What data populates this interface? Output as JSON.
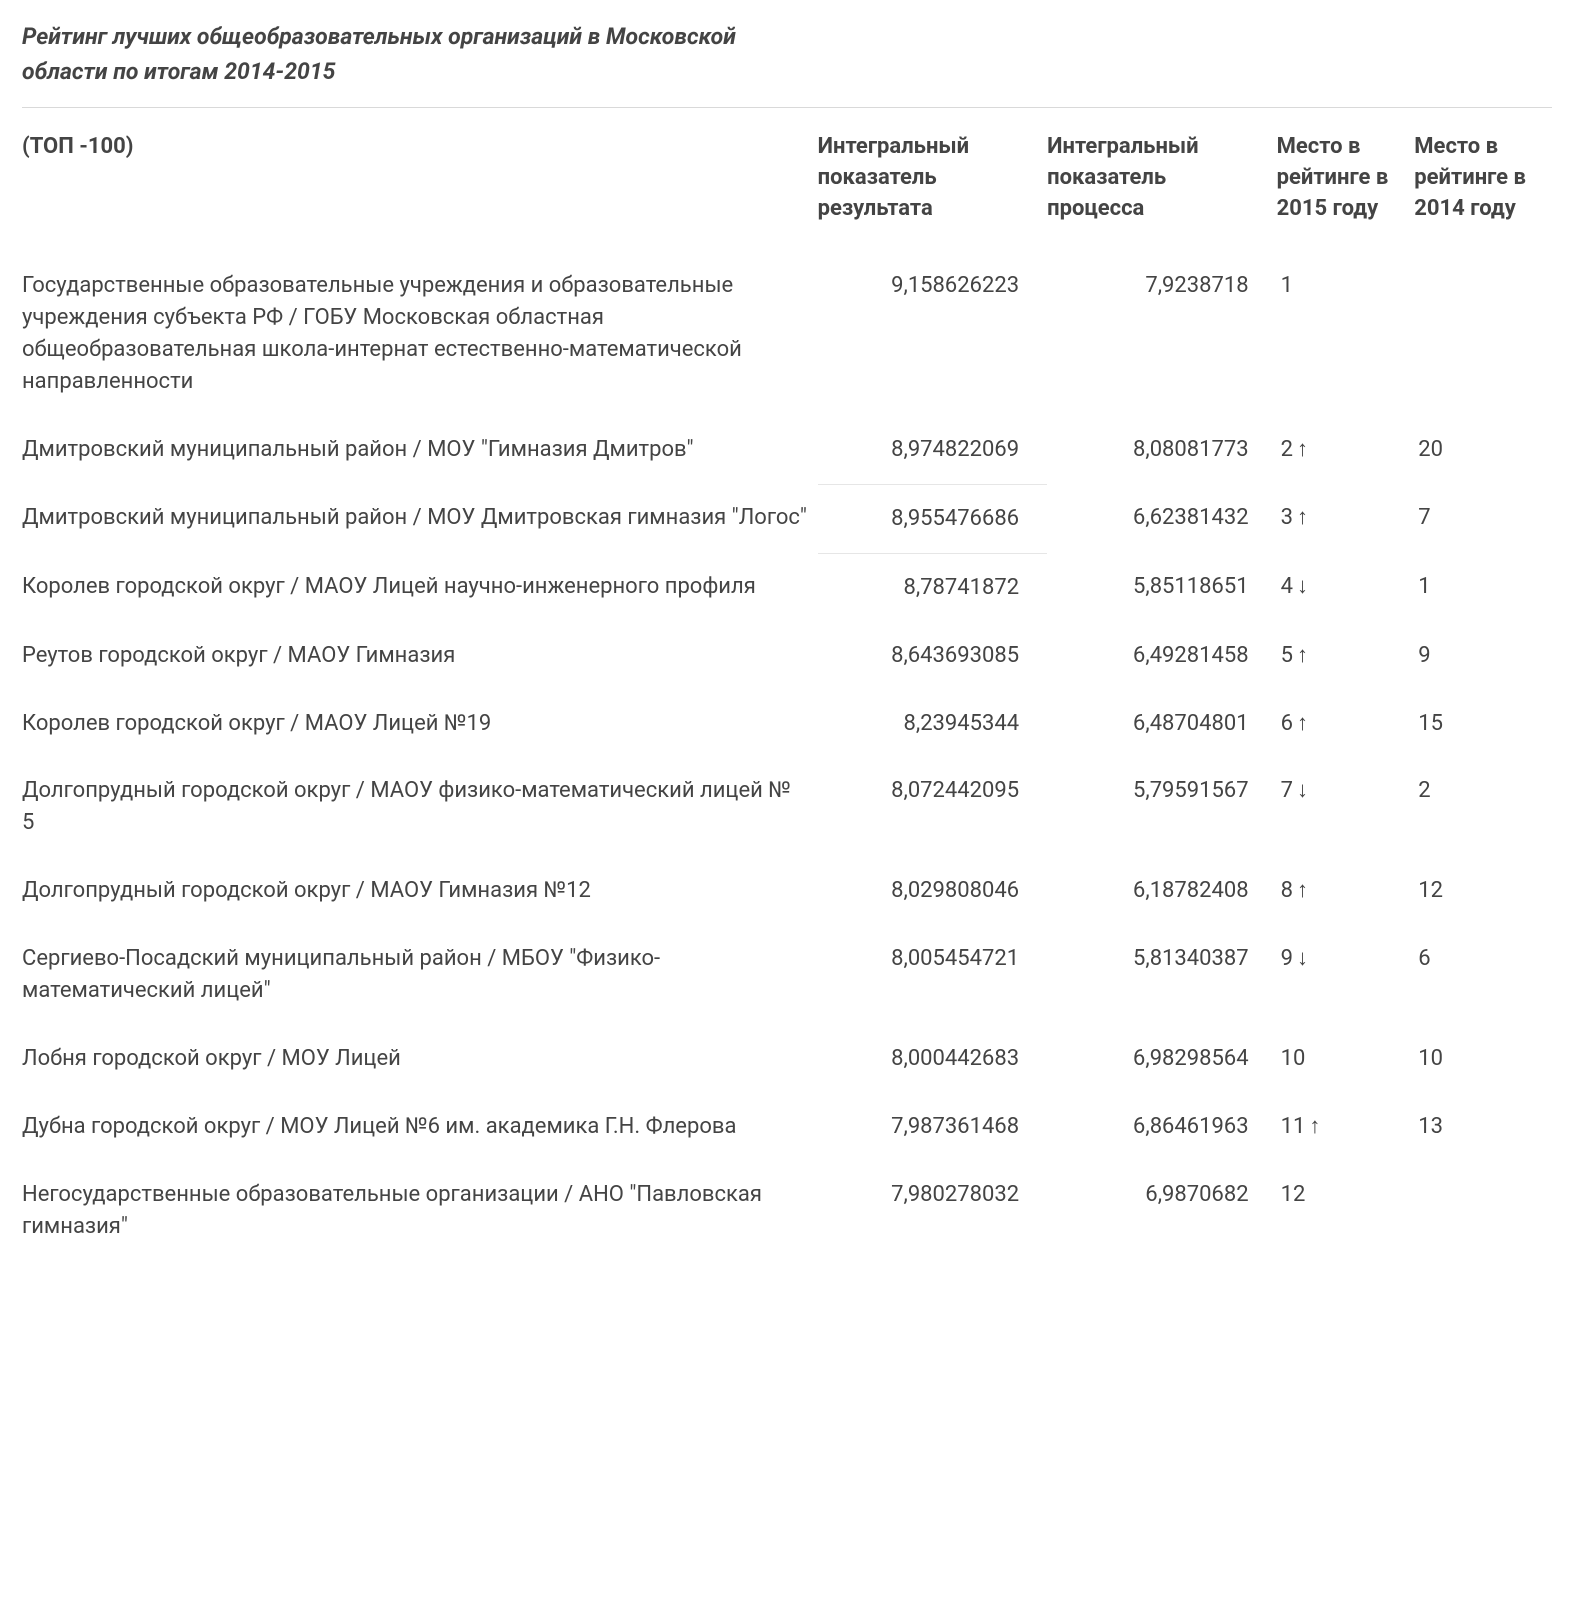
{
  "title": "Рейтинг  лучших общеобразовательных организаций в Московской области по итогам 2014-2015",
  "columns": {
    "name": "(ТОП -100)",
    "indicator_result": "Интегральный показатель результата",
    "indicator_process": "Интегральный показатель процесса",
    "rank_2015": "Место в рейтинге в 2015 году",
    "rank_2014": "Место в рейтинге в 2014 году"
  },
  "column_widths_pct": {
    "name": 52,
    "ind1": 15,
    "ind2": 15,
    "r15": 9,
    "r14": 9
  },
  "arrows": {
    "up": "↑",
    "down": "↓"
  },
  "colors": {
    "text": "#444444",
    "background": "#ffffff",
    "divider": "#d9d9d9",
    "faint_border": "#e6e6e6"
  },
  "typography": {
    "title_fontsize": 23,
    "title_style": "bold italic",
    "body_fontsize": 22,
    "header_weight": 700
  },
  "rows": [
    {
      "name": "Государственные образовательные учреждения и образовательные учреждения субъекта РФ / ГОБУ Московская областная общеобразовательная школа-интернат естественно-математической направленности",
      "indicator_result": "9,158626223",
      "indicator_process": "7,9238718",
      "rank_2015": "1",
      "rank_dir": "",
      "rank_2014": ""
    },
    {
      "name": "Дмитровский муниципальный район / МОУ  \"Гимназия Дмитров\"",
      "indicator_result": "8,974822069",
      "indicator_process": "8,08081773",
      "rank_2015": "2",
      "rank_dir": "up",
      "rank_2014": "20"
    },
    {
      "name": "Дмитровский муниципальный район / МОУ Дмитровская гимназия \"Логос\"",
      "indicator_result": "8,955476686",
      "indicator_process": "6,62381432",
      "rank_2015": "3",
      "rank_dir": "up",
      "rank_2014": "7",
      "faint_top": true
    },
    {
      "name": "Королев городской округ / МАОУ Лицей научно-инженерного профиля",
      "indicator_result": "8,78741872",
      "indicator_process": "5,85118651",
      "rank_2015": "4",
      "rank_dir": "down",
      "rank_2014": "1",
      "faint_top": true
    },
    {
      "name": "Реутов городской округ / МАОУ Гимназия",
      "indicator_result": "8,643693085",
      "indicator_process": "6,49281458",
      "rank_2015": "5",
      "rank_dir": "up",
      "rank_2014": "9"
    },
    {
      "name": "Королев городской округ / МАОУ Лицей №19",
      "indicator_result": "8,23945344",
      "indicator_process": "6,48704801",
      "rank_2015": "6",
      "rank_dir": "up",
      "rank_2014": "15"
    },
    {
      "name": "Долгопрудный городской округ / МАОУ физико-математический лицей № 5",
      "indicator_result": "8,072442095",
      "indicator_process": "5,79591567",
      "rank_2015": "7",
      "rank_dir": "down",
      "rank_2014": "2"
    },
    {
      "name": "Долгопрудный городской округ / МАОУ Гимназия №12",
      "indicator_result": "8,029808046",
      "indicator_process": "6,18782408",
      "rank_2015": "8",
      "rank_dir": "up",
      "rank_2014": "12"
    },
    {
      "name": "Сергиево-Посадский муниципальный район / МБОУ \"Физико-математический лицей\"",
      "indicator_result": "8,005454721",
      "indicator_process": "5,81340387",
      "rank_2015": "9",
      "rank_dir": "down",
      "rank_2014": "6"
    },
    {
      "name": "Лобня городской округ / МОУ Лицей",
      "indicator_result": "8,000442683",
      "indicator_process": "6,98298564",
      "rank_2015": "10",
      "rank_dir": "",
      "rank_2014": "10"
    },
    {
      "name": "Дубна городской округ / МОУ Лицей №6 им. академика Г.Н. Флерова",
      "indicator_result": "7,987361468",
      "indicator_process": "6,86461963",
      "rank_2015": "11",
      "rank_dir": "up",
      "rank_2014": "13"
    },
    {
      "name": "Негосударственные образовательные организации / АНО \"Павловская гимназия\"",
      "indicator_result": "7,980278032",
      "indicator_process": "6,9870682",
      "rank_2015": "12",
      "rank_dir": "",
      "rank_2014": ""
    }
  ]
}
